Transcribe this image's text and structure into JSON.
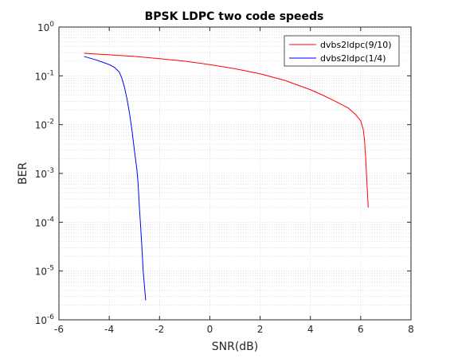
{
  "chart_data": {
    "type": "line",
    "title": "BPSK LDPC two code speeds",
    "xlabel": "SNR(dB)",
    "ylabel": "BER",
    "xlim": [
      -6,
      8
    ],
    "ylim": [
      1e-06,
      1
    ],
    "yscale": "log",
    "xticks": [
      "-6",
      "-4",
      "-2",
      "0",
      "2",
      "4",
      "6",
      "8"
    ],
    "yticks": [
      {
        "base": "10",
        "exp": "0"
      },
      {
        "base": "10",
        "exp": "-1"
      },
      {
        "base": "10",
        "exp": "-2"
      },
      {
        "base": "10",
        "exp": "-3"
      },
      {
        "base": "10",
        "exp": "-4"
      },
      {
        "base": "10",
        "exp": "-5"
      },
      {
        "base": "10",
        "exp": "-6"
      }
    ],
    "grid": true,
    "minor_grid": true,
    "legend_position": "top-right",
    "series": [
      {
        "name": "dvbs2ldpc(9/10)",
        "color": "#ff0000",
        "x": [
          -5.0,
          -4.0,
          -3.0,
          -2.0,
          -1.0,
          0.0,
          1.0,
          2.0,
          3.0,
          4.0,
          4.5,
          5.0,
          5.5,
          5.8,
          6.0,
          6.1,
          6.15,
          6.2,
          6.25,
          6.3
        ],
        "y": [
          0.29,
          0.27,
          0.25,
          0.225,
          0.2,
          0.17,
          0.14,
          0.11,
          0.08,
          0.052,
          0.04,
          0.03,
          0.022,
          0.016,
          0.012,
          0.008,
          0.005,
          0.002,
          0.0006,
          0.0002
        ]
      },
      {
        "name": "dvbs2ldpc(1/4)",
        "color": "#0000ff",
        "x": [
          -5.0,
          -4.5,
          -4.0,
          -3.8,
          -3.6,
          -3.5,
          -3.4,
          -3.3,
          -3.2,
          -3.1,
          -3.0,
          -2.9,
          -2.85,
          -2.8,
          -2.75,
          -2.7,
          -2.65,
          -2.6,
          -2.55
        ],
        "y": [
          0.25,
          0.21,
          0.17,
          0.15,
          0.12,
          0.09,
          0.06,
          0.035,
          0.018,
          0.008,
          0.003,
          0.0012,
          0.0006,
          0.0002,
          8e-05,
          3e-05,
          1e-05,
          5e-06,
          2.5e-06
        ]
      }
    ]
  }
}
